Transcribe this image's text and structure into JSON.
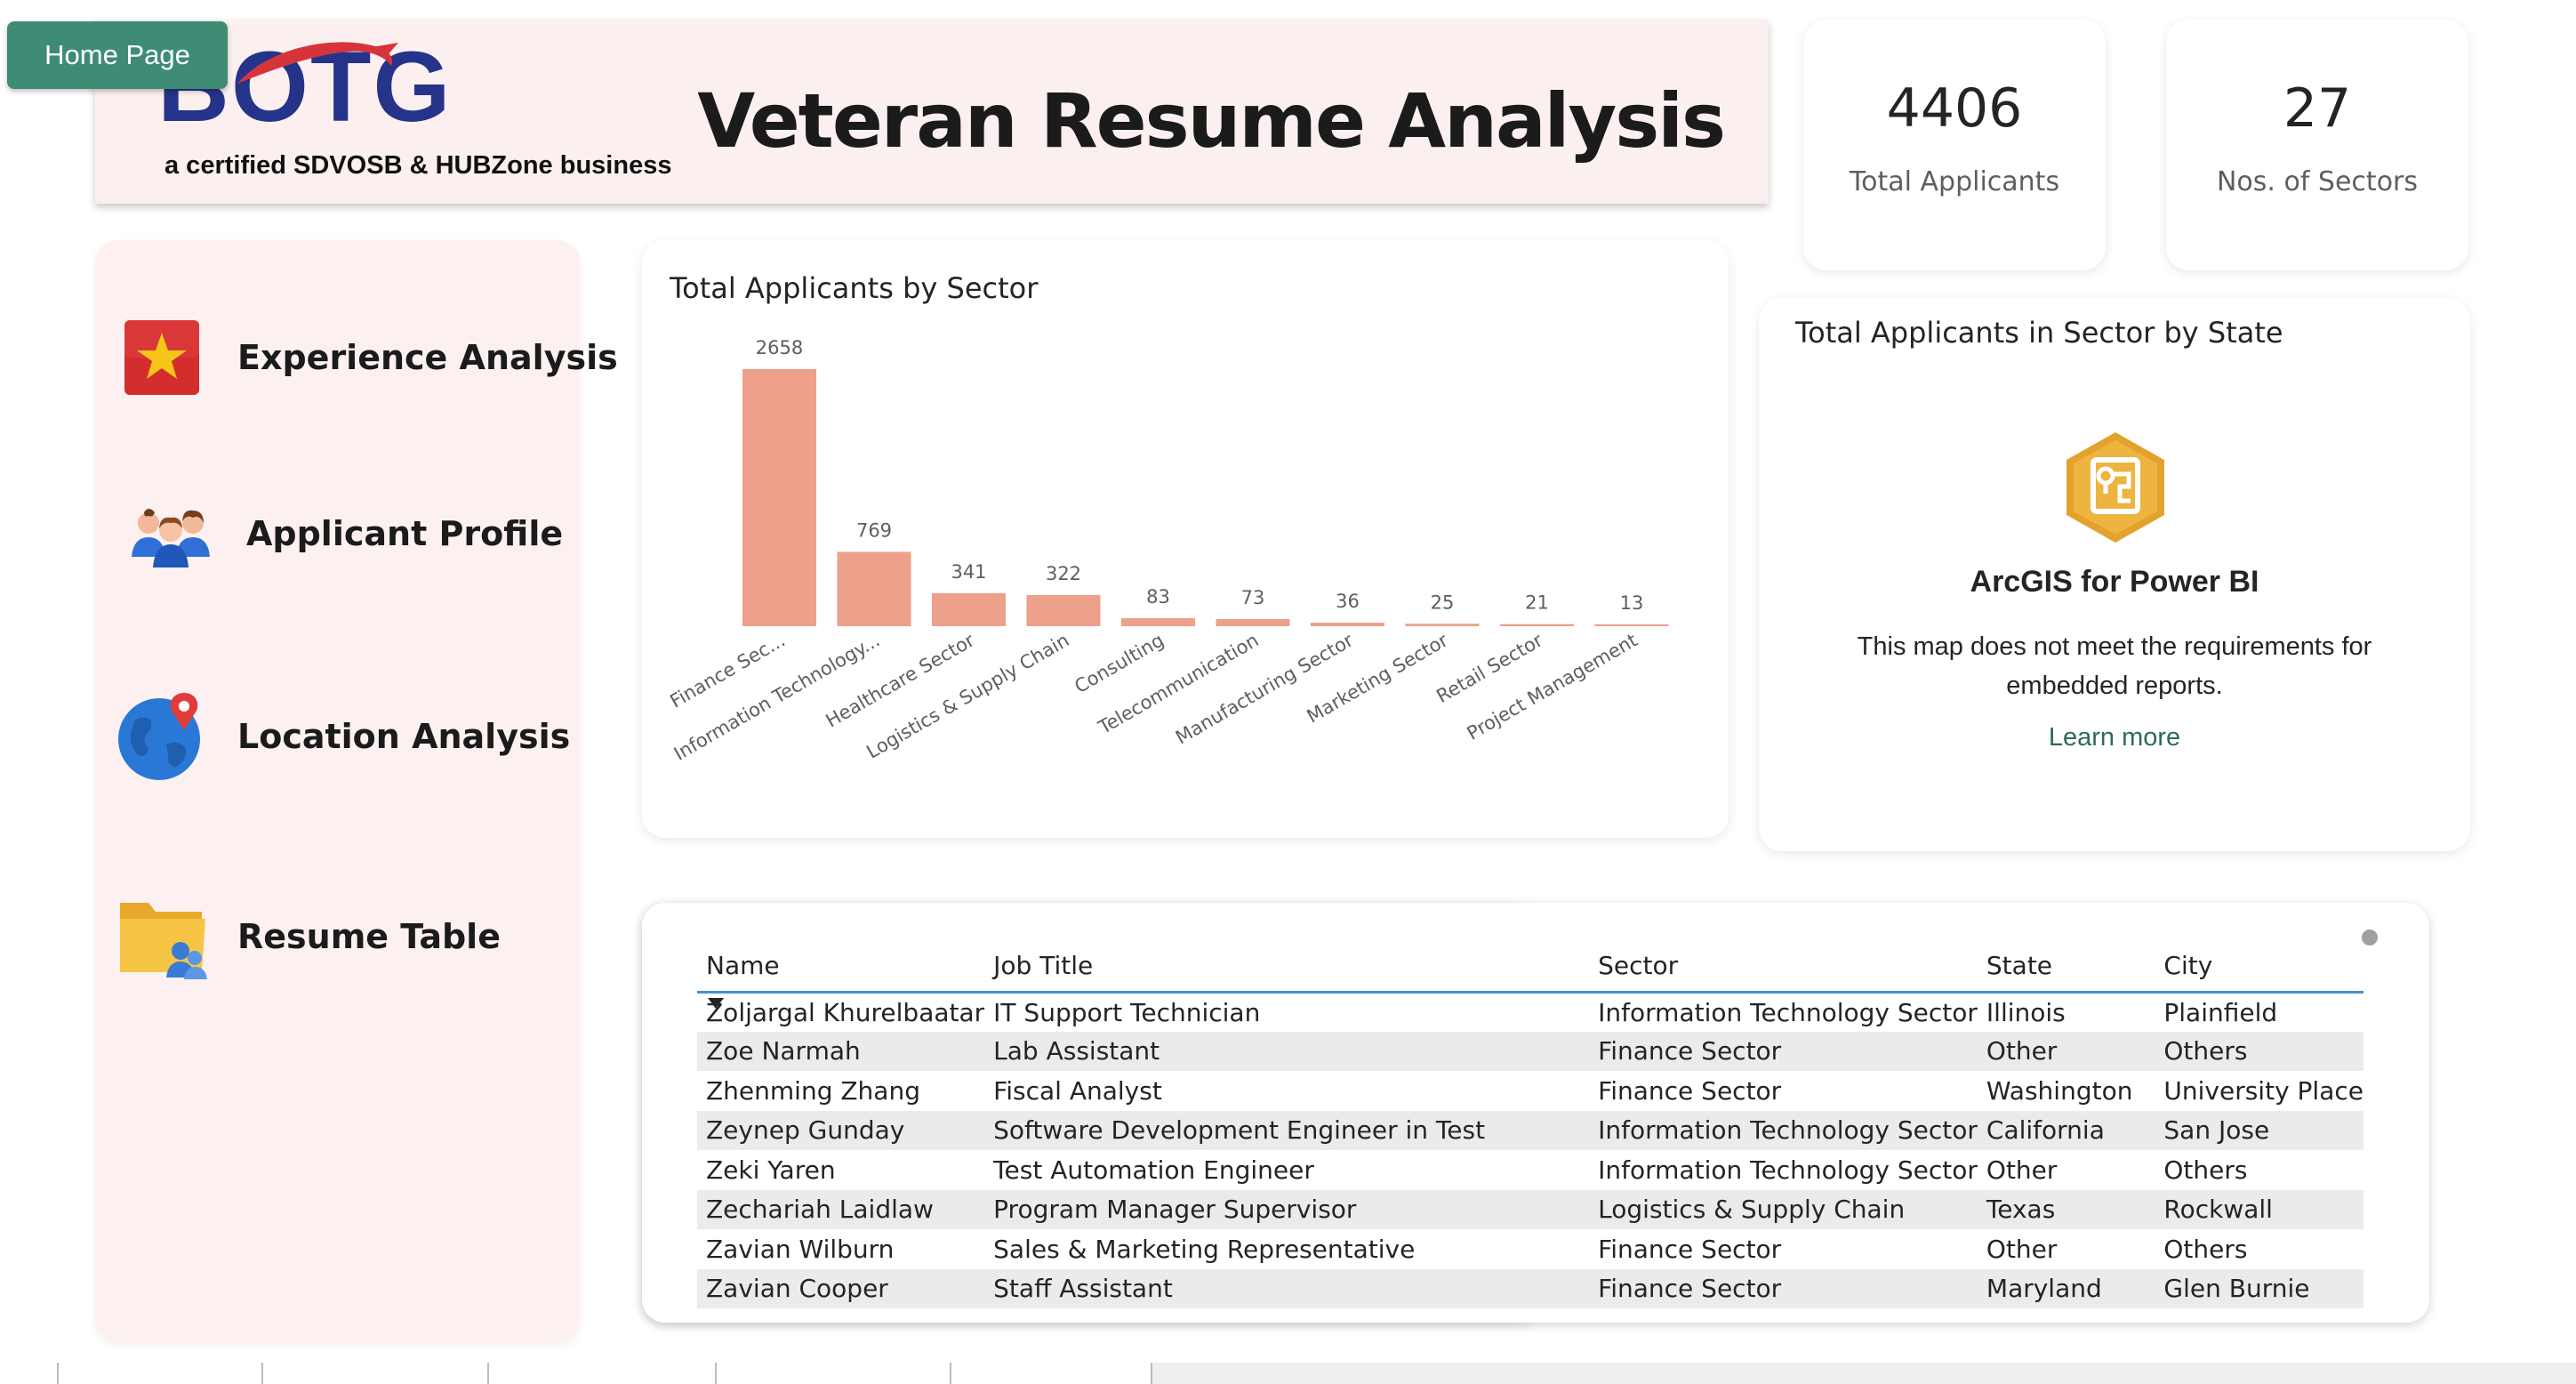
{
  "home_button": "Home Page",
  "banner": {
    "logo_text": "BOTG",
    "tagline": "a certified SDVOSB & HUBZone business",
    "title": "Veteran Resume Analysis"
  },
  "kpis": [
    {
      "value": "4406",
      "label": "Total Applicants"
    },
    {
      "value": "27",
      "label": "Nos. of Sectors"
    }
  ],
  "nav": {
    "items": [
      {
        "label": "Experience Analysis",
        "icon": "star-icon"
      },
      {
        "label": "Applicant Profile",
        "icon": "people-icon"
      },
      {
        "label": "Location Analysis",
        "icon": "globe-pin-icon"
      },
      {
        "label": "Resume Table",
        "icon": "folder-user-icon"
      }
    ]
  },
  "chart_title": "Total Applicants by Sector",
  "chart_data": {
    "type": "bar",
    "title": "Total Applicants by Sector",
    "categories": [
      "Finance Sec...",
      "Information Technology...",
      "Healthcare Sector",
      "Logistics & Supply Chain",
      "Consulting",
      "Telecommunication",
      "Manufacturing Sector",
      "Marketing Sector",
      "Retail Sector",
      "Project Management"
    ],
    "values": [
      2658,
      769,
      341,
      322,
      83,
      73,
      36,
      25,
      21,
      13
    ],
    "color": "#eda08a",
    "ylim": [
      0,
      2658
    ],
    "grid": false,
    "data_labels": true
  },
  "map": {
    "title": "Total Applicants in Sector by State",
    "heading": "ArcGIS for Power BI",
    "message": "This map does not meet the requirements for embedded reports.",
    "link": "Learn more",
    "icon": "arcgis-icon",
    "icon_color": "#e3a22c"
  },
  "table": {
    "columns": [
      "Name",
      "Job Title",
      "Sector",
      "State",
      "City"
    ],
    "rows": [
      [
        "Zoljargal Khurelbaatar",
        "IT Support Technician",
        "Information Technology Sector",
        "Illinois",
        "Plainfield"
      ],
      [
        "Zoe Narmah",
        "Lab Assistant",
        "Finance Sector",
        "Other",
        "Others"
      ],
      [
        "Zhenming Zhang",
        "Fiscal Analyst",
        "Finance Sector",
        "Washington",
        "University Place"
      ],
      [
        "Zeynep Gunday",
        "Software Development Engineer in Test",
        "Information Technology Sector",
        "California",
        "San Jose"
      ],
      [
        "Zeki Yaren",
        "Test Automation Engineer",
        "Information Technology Sector",
        "Other",
        "Others"
      ],
      [
        "Zechariah Laidlaw",
        "Program Manager Supervisor",
        "Logistics & Supply Chain",
        "Texas",
        "Rockwall"
      ],
      [
        "Zavian Wilburn",
        "Sales & Marketing Representative",
        "Finance Sector",
        "Other",
        "Others"
      ],
      [
        "Zavian Cooper",
        "Staff Assistant",
        "Finance Sector",
        "Maryland",
        "Glen Burnie"
      ]
    ]
  },
  "colors": {
    "accent_green": "#3e8c76",
    "brand_navy": "#25348a",
    "brand_red": "#d6343a",
    "panel_pink": "#fcf1f0",
    "table_header_line": "#4a8fc4"
  }
}
